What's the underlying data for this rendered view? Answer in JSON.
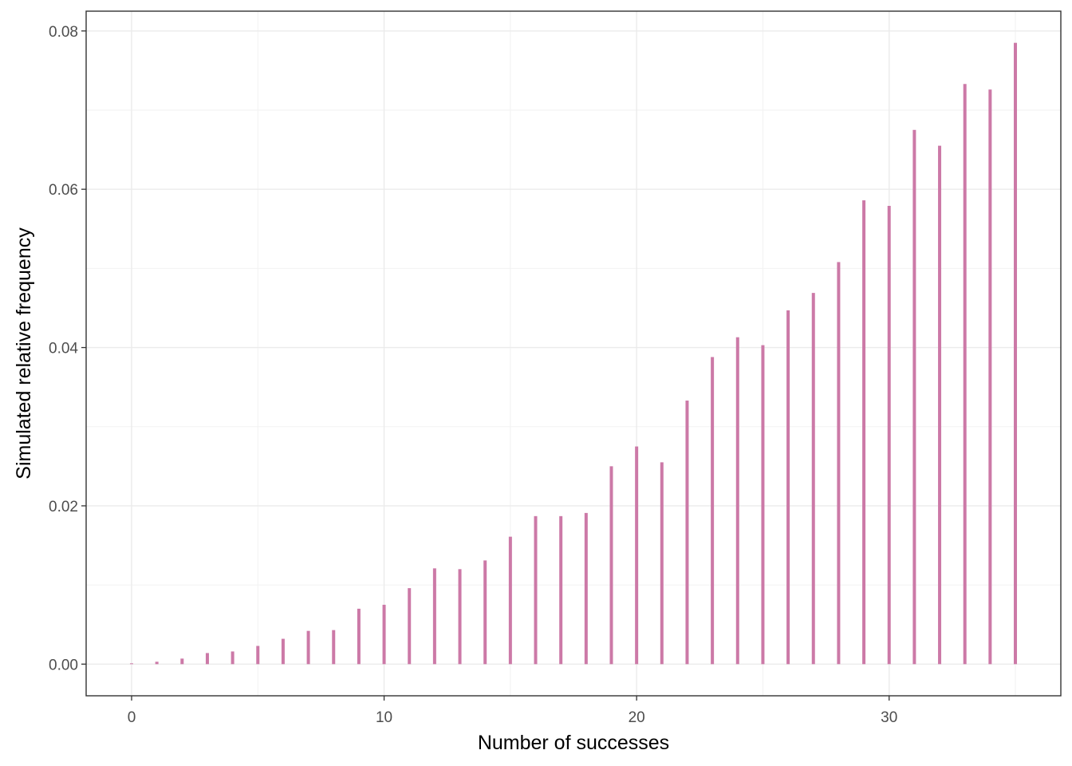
{
  "chart_data": {
    "type": "bar",
    "xlabel": "Number of successes",
    "ylabel": "Simulated relative frequency",
    "xlim": [
      -1.8,
      36.8
    ],
    "ylim": [
      -0.004,
      0.0825
    ],
    "x_ticks": [
      0,
      10,
      20,
      30
    ],
    "x_minor": [
      5,
      15,
      25,
      35
    ],
    "y_ticks": [
      0,
      0.02,
      0.04,
      0.06,
      0.08
    ],
    "y_tick_labels": [
      "0.00",
      "0.02",
      "0.04",
      "0.06",
      "0.08"
    ],
    "y_minor": [
      0.01,
      0.03,
      0.05,
      0.07
    ],
    "grid": true,
    "bar_color": "#CC79A7",
    "x": [
      0,
      1,
      2,
      3,
      4,
      5,
      6,
      7,
      8,
      9,
      10,
      11,
      12,
      13,
      14,
      15,
      16,
      17,
      18,
      19,
      20,
      21,
      22,
      23,
      24,
      25,
      26,
      27,
      28,
      29,
      30,
      31,
      32,
      33,
      34,
      35
    ],
    "values": [
      0.0001,
      0.0003,
      0.0007,
      0.0014,
      0.0016,
      0.0023,
      0.0032,
      0.0042,
      0.0043,
      0.007,
      0.0075,
      0.0096,
      0.0121,
      0.012,
      0.0131,
      0.0161,
      0.0187,
      0.0187,
      0.0191,
      0.025,
      0.0275,
      0.0255,
      0.0333,
      0.0388,
      0.0413,
      0.0403,
      0.0447,
      0.0469,
      0.0508,
      0.0586,
      0.0579,
      0.0675,
      0.0655,
      0.0733,
      0.0726,
      0.0785
    ]
  }
}
